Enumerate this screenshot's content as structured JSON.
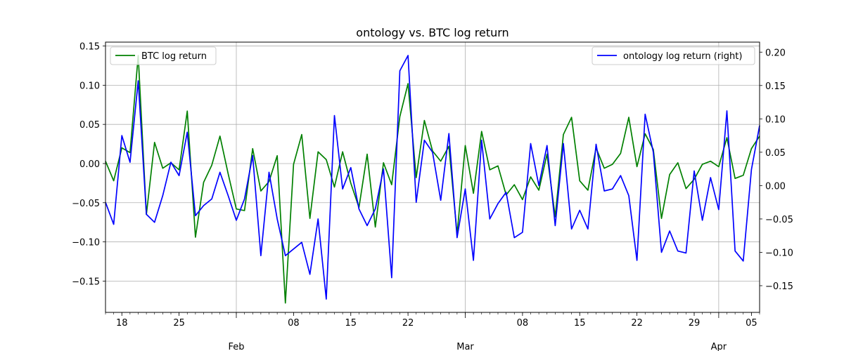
{
  "chart_data": {
    "type": "line",
    "title": "ontology vs. BTC log return",
    "xlabel": "",
    "ylabel_left": "",
    "ylabel_right": "",
    "grid": true,
    "x_start": "2018-01-16",
    "x_end": "2018-04-06",
    "ylim_left": [
      -0.19,
      0.155
    ],
    "ylim_right": [
      -0.19,
      0.215
    ],
    "yticks_left": [
      -0.15,
      -0.1,
      -0.05,
      0.0,
      0.05,
      0.1,
      0.15
    ],
    "yticks_left_labels": [
      "−0.15",
      "−0.10",
      "−0.05",
      "0.00",
      "0.05",
      "0.10",
      "0.15"
    ],
    "yticks_right": [
      -0.15,
      -0.1,
      -0.05,
      0.0,
      0.05,
      0.1,
      0.15,
      0.2
    ],
    "yticks_right_labels": [
      "−0.15",
      "−0.10",
      "−0.05",
      "0.00",
      "0.05",
      "0.10",
      "0.15",
      "0.20"
    ],
    "xticks_minor": [
      {
        "date": "2018-01-18",
        "label": "18"
      },
      {
        "date": "2018-01-25",
        "label": "25"
      },
      {
        "date": "2018-02-08",
        "label": "08"
      },
      {
        "date": "2018-02-15",
        "label": "15"
      },
      {
        "date": "2018-02-22",
        "label": "22"
      },
      {
        "date": "2018-03-08",
        "label": "08"
      },
      {
        "date": "2018-03-15",
        "label": "15"
      },
      {
        "date": "2018-03-22",
        "label": "22"
      },
      {
        "date": "2018-03-29",
        "label": "29"
      },
      {
        "date": "2018-04-05",
        "label": "05"
      }
    ],
    "xticks_major": [
      {
        "date": "2018-02-01",
        "label": "Feb"
      },
      {
        "date": "2018-03-01",
        "label": "Mar"
      },
      {
        "date": "2018-04-01",
        "label": "Apr"
      }
    ],
    "legend_left": {
      "placement": "upper-left",
      "label": "BTC log return"
    },
    "legend_right": {
      "placement": "upper-right",
      "label": "ontology log return (right)"
    },
    "series": [
      {
        "name": "BTC log return",
        "axis": "left",
        "color": "#008000",
        "start_date": "2018-01-16",
        "values": [
          0.003,
          -0.022,
          0.02,
          0.014,
          0.138,
          -0.065,
          0.027,
          -0.006,
          0.001,
          -0.008,
          0.067,
          -0.094,
          -0.024,
          -0.002,
          0.035,
          -0.013,
          -0.058,
          -0.06,
          0.019,
          -0.035,
          -0.023,
          0.01,
          -0.178,
          -0.001,
          0.037,
          -0.07,
          0.015,
          0.005,
          -0.03,
          0.015,
          -0.025,
          -0.056,
          0.012,
          -0.081,
          0.001,
          -0.027,
          0.06,
          0.102,
          -0.018,
          0.055,
          0.016,
          0.003,
          0.022,
          -0.09,
          0.023,
          -0.038,
          0.041,
          -0.008,
          -0.003,
          -0.04,
          -0.027,
          -0.046,
          -0.017,
          -0.034,
          0.012,
          -0.068,
          0.037,
          0.059,
          -0.022,
          -0.034,
          0.02,
          -0.006,
          -0.001,
          0.013,
          0.059,
          -0.004,
          0.038,
          0.018,
          -0.07,
          -0.014,
          0.001,
          -0.032,
          -0.02,
          -0.001,
          0.003,
          -0.004,
          0.033,
          -0.019,
          -0.015,
          0.019,
          0.035
        ]
      },
      {
        "name": "ontology log return (right)",
        "axis": "right",
        "color": "#0000ff",
        "start_date": "2018-01-16",
        "values": [
          -0.025,
          -0.058,
          0.075,
          0.035,
          0.157,
          -0.043,
          -0.055,
          -0.015,
          0.035,
          0.015,
          0.08,
          -0.045,
          -0.03,
          -0.02,
          0.02,
          -0.015,
          -0.052,
          -0.02,
          0.045,
          -0.105,
          0.02,
          -0.05,
          -0.105,
          -0.095,
          -0.085,
          -0.133,
          -0.05,
          -0.17,
          0.105,
          -0.005,
          0.027,
          -0.035,
          -0.06,
          -0.035,
          0.025,
          -0.138,
          0.172,
          0.195,
          -0.025,
          0.068,
          0.05,
          -0.022,
          0.078,
          -0.078,
          -0.005,
          -0.112,
          0.068,
          -0.05,
          -0.027,
          -0.01,
          -0.078,
          -0.07,
          0.063,
          0.0,
          0.06,
          -0.06,
          0.063,
          -0.065,
          -0.037,
          -0.065,
          0.062,
          -0.008,
          -0.005,
          0.015,
          -0.015,
          -0.112,
          0.107,
          0.05,
          -0.1,
          -0.068,
          -0.098,
          -0.101,
          0.022,
          -0.052,
          0.012,
          -0.036,
          0.112,
          -0.098,
          -0.113,
          0.024,
          0.09
        ]
      }
    ]
  }
}
